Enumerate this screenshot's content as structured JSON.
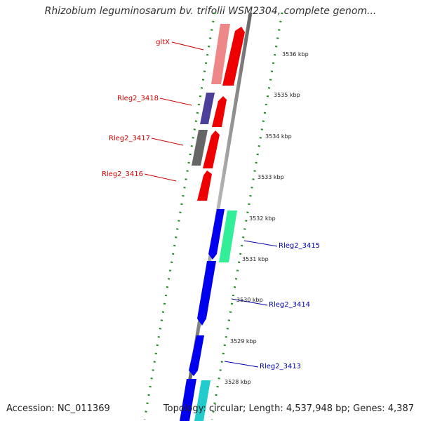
{
  "title": "Rhizobium leguminosarum bv. trifolii WSM2304, complete genom...",
  "footer": {
    "accession": "Accession: NC_011369",
    "topology": "Topology: circular; Length: 4,537,948 bp; Genes: 4,387"
  },
  "scale_labels": [
    "3536 kbp",
    "3535 kbp",
    "3534 kbp",
    "3533 kbp",
    "3532 kbp",
    "3531 kbp",
    "3530 kbp",
    "3529 kbp",
    "3528 kbp"
  ],
  "gene_labels_left": [
    "gltX",
    "Rleg2_3418",
    "Rleg2_3417",
    "Rleg2_3416"
  ],
  "gene_labels_right": [
    "Rleg2_3415",
    "Rleg2_3414",
    "Rleg2_3413"
  ],
  "colors": {
    "left_label": "#cc0000",
    "right_label": "#0000aa",
    "backbone": "#888888",
    "ticks": "#228822"
  }
}
